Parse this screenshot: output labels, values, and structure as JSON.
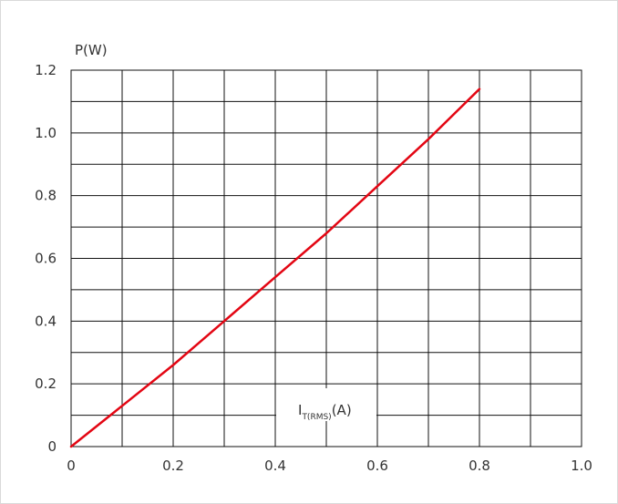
{
  "chart_data": {
    "type": "line",
    "ylabel": "P(W)",
    "xlabel": {
      "main": "I",
      "sub": "T(RMS)",
      "unit": "(A)"
    },
    "xlim": [
      0,
      1.0
    ],
    "ylim": [
      0,
      1.2
    ],
    "x_ticks": [
      "0",
      "0.2",
      "0.4",
      "0.6",
      "0.8",
      "1.0"
    ],
    "y_ticks": [
      "0",
      "0.2",
      "0.4",
      "0.6",
      "0.8",
      "1.0",
      "1.2"
    ],
    "grid": true,
    "line_color": "#e30613",
    "series": [
      {
        "x": [
          0,
          0.1,
          0.2,
          0.3,
          0.4,
          0.5,
          0.6,
          0.7,
          0.8
        ],
        "y": [
          0,
          0.13,
          0.26,
          0.4,
          0.54,
          0.68,
          0.83,
          0.98,
          1.14
        ]
      }
    ]
  }
}
